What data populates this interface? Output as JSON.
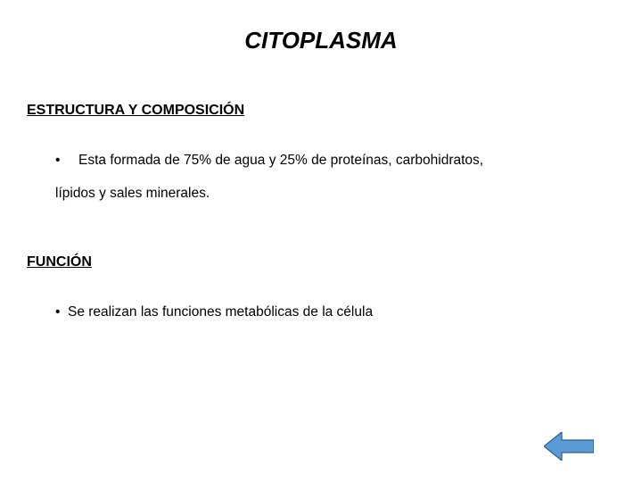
{
  "title": {
    "text": "CITOPLASMA",
    "fontsize": 26
  },
  "section1": {
    "heading": "ESTRUCTURA Y COMPOSICIÓN",
    "heading_fontsize": 16,
    "bullet_fontsize": 15.5,
    "bullet_text_line1": "Esta formada de 75% de agua y 25% de proteínas, carbohidratos,",
    "bullet_text_line2": "lípidos y sales minerales."
  },
  "section2": {
    "heading": "FUNCIÓN",
    "heading_fontsize": 16,
    "bullet_fontsize": 15.5,
    "bullet_text": "Se realizan las funciones metabólicas de la célula"
  },
  "arrow": {
    "fill_color": "#5b9bd5",
    "stroke_color": "#2e5c8a",
    "stroke_width": 1.2,
    "width": 56,
    "height": 32
  },
  "colors": {
    "background": "#ffffff",
    "text": "#000000"
  }
}
